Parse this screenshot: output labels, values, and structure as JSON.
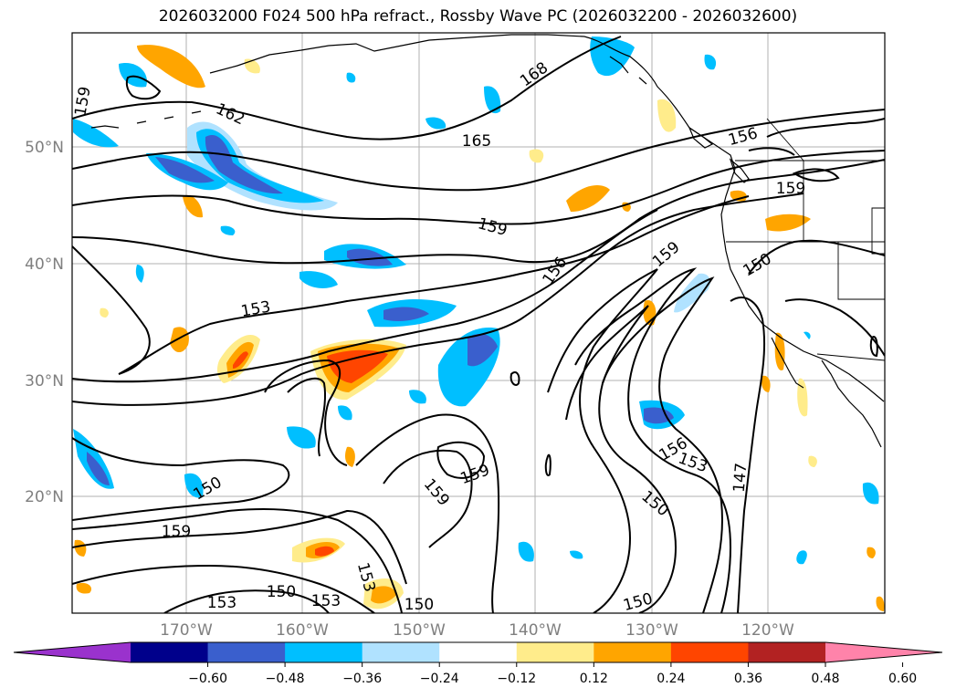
{
  "title": "2026032000 F024 500 hPa refract., Rossby Wave PC (2026032200 - 2026032600)",
  "latitude_labels": [
    "50°N",
    "40°N",
    "30°N",
    "20°N"
  ],
  "longitude_labels": [
    "170°W",
    "160°W",
    "150°W",
    "140°W",
    "130°W",
    "120°W"
  ],
  "contour_labels": [
    {
      "text": "168",
      "name": "contour-label-168"
    },
    {
      "text": "165",
      "name": "contour-label-165"
    },
    {
      "text": "162",
      "name": "contour-label-162-nw"
    },
    {
      "text": "159",
      "name": "contour-label-159-nw"
    },
    {
      "text": "159",
      "name": "contour-label-159-central"
    },
    {
      "text": "159",
      "name": "contour-label-159-ne"
    },
    {
      "text": "159",
      "name": "contour-label-159-coast"
    },
    {
      "text": "159",
      "name": "contour-label-159-south1"
    },
    {
      "text": "159",
      "name": "contour-label-159-south2"
    },
    {
      "text": "159",
      "name": "contour-label-159-sw"
    },
    {
      "text": "156",
      "name": "contour-label-156-ne"
    },
    {
      "text": "156",
      "name": "contour-label-156-central"
    },
    {
      "text": "156",
      "name": "contour-label-156-south"
    },
    {
      "text": "153",
      "name": "contour-label-153-west"
    },
    {
      "text": "153",
      "name": "contour-label-153-south1"
    },
    {
      "text": "153",
      "name": "contour-label-153-south2"
    },
    {
      "text": "153",
      "name": "contour-label-153-south3"
    },
    {
      "text": "153",
      "name": "contour-label-153-south4"
    },
    {
      "text": "150",
      "name": "contour-label-150-coast"
    },
    {
      "text": "150",
      "name": "contour-label-150-sw"
    },
    {
      "text": "150",
      "name": "contour-label-150-south1"
    },
    {
      "text": "150",
      "name": "contour-label-150-south2"
    },
    {
      "text": "150",
      "name": "contour-label-150-south3"
    },
    {
      "text": "150",
      "name": "contour-label-150-se"
    },
    {
      "text": "147",
      "name": "contour-label-147"
    }
  ],
  "colorbar": {
    "ticks": [
      "−0.60",
      "−0.48",
      "−0.36",
      "−0.24",
      "−0.12",
      "0.12",
      "0.24",
      "0.36",
      "0.48",
      "0.60"
    ],
    "colors": [
      "#9a32cd",
      "#00008b",
      "#3a5fcd",
      "#00bfff",
      "#b0e2ff",
      "#ffffff",
      "#ffec8b",
      "#ffa500",
      "#ff4500",
      "#b22222",
      "#ff83aa"
    ]
  },
  "colors": {
    "grid": "#b0b0b0",
    "contour": "#000000",
    "coast": "#000000"
  }
}
